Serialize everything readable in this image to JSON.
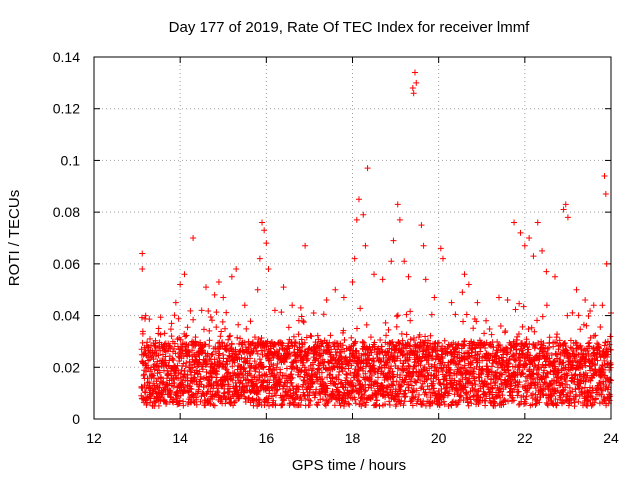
{
  "chart_data": {
    "type": "scatter",
    "title": "Day 177 of 2019, Rate Of TEC Index for receiver lmmf",
    "xlabel": "GPS time / hours",
    "ylabel": "ROTI / TECUs",
    "xlim": [
      12,
      24
    ],
    "ylim": [
      0,
      0.14
    ],
    "xticks": [
      12,
      14,
      16,
      18,
      20,
      22,
      24
    ],
    "yticks": [
      0,
      0.02,
      0.04,
      0.06,
      0.08,
      0.1,
      0.12,
      0.14
    ],
    "xtick_labels": [
      "12",
      "14",
      "16",
      "18",
      "20",
      "22",
      "24"
    ],
    "ytick_labels": [
      "0",
      "0.02",
      "0.04",
      "0.06",
      "0.08",
      "0.1",
      "0.12",
      "0.14"
    ],
    "grid": true,
    "marker": "+",
    "color": "#ff0000",
    "data_range": {
      "x_start": 13.1,
      "x_end": 24.0,
      "typical_band": [
        0.005,
        0.03
      ]
    },
    "series": [
      {
        "name": "ROTI",
        "points": [
          [
            13.12,
            0.064
          ],
          [
            13.12,
            0.058
          ],
          [
            13.2,
            0.04
          ],
          [
            13.3,
            0.031
          ],
          [
            13.5,
            0.035
          ],
          [
            13.8,
            0.037
          ],
          [
            13.9,
            0.045
          ],
          [
            14.0,
            0.052
          ],
          [
            14.1,
            0.056
          ],
          [
            14.3,
            0.07
          ],
          [
            14.5,
            0.042
          ],
          [
            14.6,
            0.051
          ],
          [
            14.8,
            0.048
          ],
          [
            14.9,
            0.053
          ],
          [
            15.0,
            0.047
          ],
          [
            15.2,
            0.055
          ],
          [
            15.3,
            0.058
          ],
          [
            15.5,
            0.044
          ],
          [
            15.8,
            0.05
          ],
          [
            15.85,
            0.062
          ],
          [
            15.9,
            0.076
          ],
          [
            15.95,
            0.073
          ],
          [
            16.0,
            0.068
          ],
          [
            16.05,
            0.058
          ],
          [
            16.2,
            0.042
          ],
          [
            16.4,
            0.051
          ],
          [
            16.6,
            0.044
          ],
          [
            16.8,
            0.043
          ],
          [
            16.9,
            0.067
          ],
          [
            17.1,
            0.041
          ],
          [
            17.4,
            0.046
          ],
          [
            17.6,
            0.05
          ],
          [
            17.8,
            0.047
          ],
          [
            18.0,
            0.053
          ],
          [
            18.05,
            0.062
          ],
          [
            18.1,
            0.077
          ],
          [
            18.15,
            0.085
          ],
          [
            18.25,
            0.079
          ],
          [
            18.3,
            0.067
          ],
          [
            18.35,
            0.097
          ],
          [
            18.5,
            0.056
          ],
          [
            18.7,
            0.054
          ],
          [
            18.9,
            0.061
          ],
          [
            18.95,
            0.069
          ],
          [
            19.05,
            0.083
          ],
          [
            19.1,
            0.077
          ],
          [
            19.2,
            0.061
          ],
          [
            19.3,
            0.055
          ],
          [
            19.4,
            0.128
          ],
          [
            19.42,
            0.126
          ],
          [
            19.45,
            0.134
          ],
          [
            19.48,
            0.13
          ],
          [
            19.6,
            0.075
          ],
          [
            19.65,
            0.067
          ],
          [
            19.7,
            0.054
          ],
          [
            19.9,
            0.047
          ],
          [
            20.05,
            0.066
          ],
          [
            20.1,
            0.062
          ],
          [
            20.3,
            0.045
          ],
          [
            20.55,
            0.049
          ],
          [
            20.6,
            0.056
          ],
          [
            20.7,
            0.052
          ],
          [
            20.9,
            0.045
          ],
          [
            21.1,
            0.038
          ],
          [
            21.4,
            0.047
          ],
          [
            21.6,
            0.046
          ],
          [
            21.75,
            0.076
          ],
          [
            21.9,
            0.072
          ],
          [
            22.0,
            0.067
          ],
          [
            22.1,
            0.07
          ],
          [
            22.2,
            0.063
          ],
          [
            22.3,
            0.076
          ],
          [
            22.4,
            0.065
          ],
          [
            22.5,
            0.057
          ],
          [
            22.7,
            0.055
          ],
          [
            22.9,
            0.081
          ],
          [
            22.95,
            0.083
          ],
          [
            23.0,
            0.078
          ],
          [
            23.2,
            0.05
          ],
          [
            23.4,
            0.046
          ],
          [
            23.6,
            0.044
          ],
          [
            23.8,
            0.044
          ],
          [
            23.85,
            0.094
          ],
          [
            23.88,
            0.087
          ],
          [
            23.9,
            0.06
          ],
          [
            24.0,
            0.041
          ]
        ]
      }
    ]
  }
}
